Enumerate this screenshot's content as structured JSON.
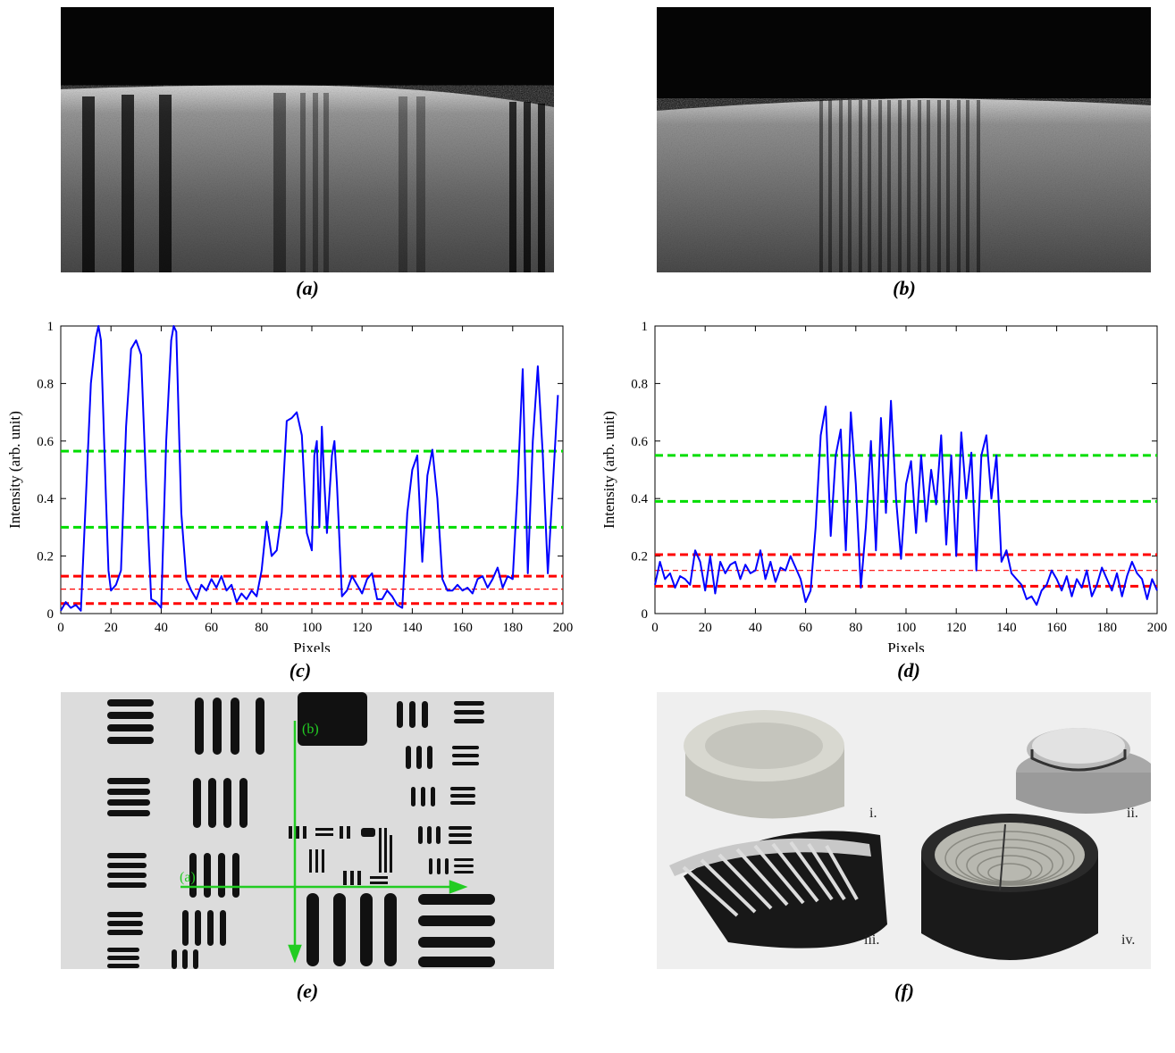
{
  "captions": {
    "a": "(a)",
    "b": "(b)",
    "c": "(c)",
    "d": "(d)",
    "e": "(e)",
    "f": "(f)"
  },
  "colors": {
    "line": "#0000ff",
    "green": "#00dd00",
    "red": "#ff0000",
    "arrow": "#22cc22"
  },
  "panel_e": {
    "label_a": "(a)",
    "label_b": "(b)"
  },
  "panel_f": {
    "label_i": "i.",
    "label_ii": "ii.",
    "label_iii": "iii.",
    "label_iv": "iv."
  },
  "chart_data": [
    {
      "id": "c",
      "type": "line",
      "xlabel": "Pixels",
      "ylabel": "Intensity (arb. unit)",
      "xlim": [
        0,
        200
      ],
      "ylim": [
        0,
        1
      ],
      "xticks": [
        "0",
        "20",
        "40",
        "60",
        "80",
        "100",
        "120",
        "140",
        "160",
        "180",
        "200"
      ],
      "yticks": [
        "0",
        "0.2",
        "0.4",
        "0.6",
        "0.8",
        "1"
      ],
      "grid": false,
      "hlines": [
        {
          "y": 0.565,
          "color": "green",
          "style": "dashed"
        },
        {
          "y": 0.3,
          "color": "green",
          "style": "dashed"
        },
        {
          "y": 0.13,
          "color": "red",
          "style": "dashed"
        },
        {
          "y": 0.085,
          "color": "red",
          "style": "dashed-thin"
        },
        {
          "y": 0.035,
          "color": "red",
          "style": "dashed"
        }
      ],
      "series": [
        {
          "x": [
            0,
            2,
            4,
            6,
            8,
            10,
            12,
            14,
            15,
            16,
            18,
            19,
            20,
            22,
            24,
            26,
            28,
            30,
            32,
            34,
            36,
            38,
            40,
            42,
            44,
            45,
            46,
            48,
            50,
            52,
            54,
            56,
            58,
            60,
            62,
            64,
            66,
            68,
            70,
            72,
            74,
            76,
            78,
            80,
            82,
            84,
            86,
            88,
            90,
            92,
            94,
            96,
            98,
            100,
            101,
            102,
            103,
            104,
            105,
            106,
            108,
            109,
            110,
            112,
            114,
            116,
            118,
            120,
            122,
            124,
            126,
            128,
            130,
            132,
            134,
            136,
            138,
            140,
            142,
            144,
            146,
            148,
            150,
            152,
            154,
            156,
            158,
            160,
            162,
            164,
            166,
            168,
            170,
            172,
            174,
            176,
            178,
            180,
            182,
            184,
            186,
            188,
            190,
            192,
            194,
            196,
            198
          ],
          "y": [
            0.01,
            0.04,
            0.02,
            0.03,
            0.01,
            0.4,
            0.8,
            0.96,
            1.0,
            0.95,
            0.4,
            0.15,
            0.08,
            0.1,
            0.15,
            0.65,
            0.92,
            0.95,
            0.9,
            0.45,
            0.05,
            0.04,
            0.02,
            0.6,
            0.95,
            1.0,
            0.98,
            0.35,
            0.12,
            0.08,
            0.05,
            0.1,
            0.08,
            0.12,
            0.09,
            0.13,
            0.08,
            0.1,
            0.04,
            0.07,
            0.05,
            0.08,
            0.06,
            0.15,
            0.32,
            0.2,
            0.22,
            0.35,
            0.67,
            0.68,
            0.7,
            0.62,
            0.28,
            0.22,
            0.55,
            0.6,
            0.3,
            0.65,
            0.45,
            0.28,
            0.55,
            0.6,
            0.45,
            0.06,
            0.08,
            0.13,
            0.1,
            0.07,
            0.12,
            0.14,
            0.05,
            0.05,
            0.08,
            0.06,
            0.03,
            0.02,
            0.35,
            0.5,
            0.55,
            0.18,
            0.48,
            0.57,
            0.4,
            0.12,
            0.08,
            0.08,
            0.1,
            0.08,
            0.09,
            0.07,
            0.12,
            0.13,
            0.09,
            0.12,
            0.16,
            0.09,
            0.13,
            0.12,
            0.45,
            0.85,
            0.14,
            0.6,
            0.86,
            0.55,
            0.14,
            0.45,
            0.76
          ]
        }
      ]
    },
    {
      "id": "d",
      "type": "line",
      "xlabel": "Pixels",
      "ylabel": "Intensity (arb. unit)",
      "xlim": [
        0,
        200
      ],
      "ylim": [
        0,
        1
      ],
      "xticks": [
        "0",
        "20",
        "40",
        "60",
        "80",
        "100",
        "120",
        "140",
        "160",
        "180",
        "200"
      ],
      "yticks": [
        "0",
        "0.2",
        "0.4",
        "0.6",
        "0.8",
        "1"
      ],
      "grid": false,
      "hlines": [
        {
          "y": 0.55,
          "color": "green",
          "style": "dashed"
        },
        {
          "y": 0.39,
          "color": "green",
          "style": "dashed"
        },
        {
          "y": 0.205,
          "color": "red",
          "style": "dashed"
        },
        {
          "y": 0.15,
          "color": "red",
          "style": "dashed-thin"
        },
        {
          "y": 0.095,
          "color": "red",
          "style": "dashed"
        }
      ],
      "series": [
        {
          "x": [
            0,
            2,
            4,
            6,
            8,
            10,
            12,
            14,
            16,
            18,
            20,
            22,
            24,
            26,
            28,
            30,
            32,
            34,
            36,
            38,
            40,
            42,
            44,
            46,
            48,
            50,
            52,
            54,
            56,
            58,
            60,
            62,
            64,
            66,
            68,
            70,
            72,
            74,
            76,
            78,
            80,
            82,
            84,
            86,
            88,
            90,
            92,
            94,
            96,
            98,
            100,
            102,
            104,
            106,
            108,
            110,
            112,
            114,
            116,
            118,
            120,
            122,
            124,
            126,
            128,
            130,
            132,
            134,
            136,
            138,
            140,
            142,
            144,
            146,
            148,
            150,
            152,
            154,
            156,
            158,
            160,
            162,
            164,
            166,
            168,
            170,
            172,
            174,
            176,
            178,
            180,
            182,
            184,
            186,
            188,
            190,
            192,
            194,
            196,
            198,
            200
          ],
          "y": [
            0.1,
            0.18,
            0.12,
            0.14,
            0.09,
            0.13,
            0.12,
            0.1,
            0.22,
            0.18,
            0.08,
            0.2,
            0.07,
            0.18,
            0.14,
            0.17,
            0.18,
            0.12,
            0.17,
            0.14,
            0.15,
            0.22,
            0.12,
            0.18,
            0.11,
            0.16,
            0.15,
            0.2,
            0.16,
            0.12,
            0.04,
            0.08,
            0.3,
            0.62,
            0.72,
            0.27,
            0.55,
            0.64,
            0.22,
            0.7,
            0.45,
            0.09,
            0.3,
            0.6,
            0.22,
            0.68,
            0.35,
            0.74,
            0.4,
            0.19,
            0.45,
            0.53,
            0.28,
            0.55,
            0.32,
            0.5,
            0.38,
            0.62,
            0.24,
            0.55,
            0.2,
            0.63,
            0.4,
            0.56,
            0.15,
            0.55,
            0.62,
            0.4,
            0.55,
            0.18,
            0.22,
            0.14,
            0.12,
            0.1,
            0.05,
            0.06,
            0.03,
            0.08,
            0.1,
            0.15,
            0.12,
            0.08,
            0.13,
            0.06,
            0.12,
            0.09,
            0.15,
            0.06,
            0.1,
            0.16,
            0.12,
            0.08,
            0.14,
            0.06,
            0.13,
            0.18,
            0.14,
            0.12,
            0.05,
            0.12,
            0.08
          ]
        }
      ]
    }
  ]
}
